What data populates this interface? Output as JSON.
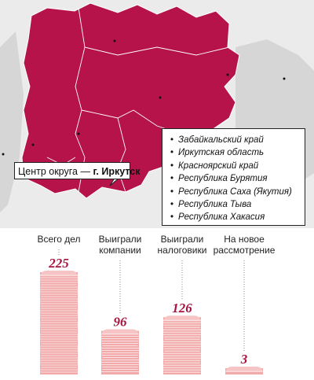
{
  "map": {
    "capital_prefix": "Центр округа —",
    "capital_city": "г. Иркутск",
    "regions": [
      "Забайкальский край",
      "Иркутская область",
      "Красноярский край",
      "Республика Бурятия",
      "Республика Саха (Якутия)",
      "Республика Тыва",
      "Республика Хакасия"
    ],
    "colors": {
      "region_fill": "#b51349",
      "background": "#ebebeb",
      "other_land": "#d2d2d2"
    }
  },
  "chart_data": {
    "type": "bar",
    "categories": [
      "Всего дел",
      "Выиграли компании",
      "Выиграли налоговики",
      "На новое рассмотрение"
    ],
    "category_lines": [
      [
        "Всего дел"
      ],
      [
        "Выиграли",
        "компании"
      ],
      [
        "Выиграли",
        "налоговики"
      ],
      [
        "На новое",
        "рассмотрение"
      ]
    ],
    "values": [
      225,
      96,
      126,
      3
    ],
    "colors": {
      "stack": "#f1a9a9",
      "value_text": "#a8143f"
    }
  }
}
